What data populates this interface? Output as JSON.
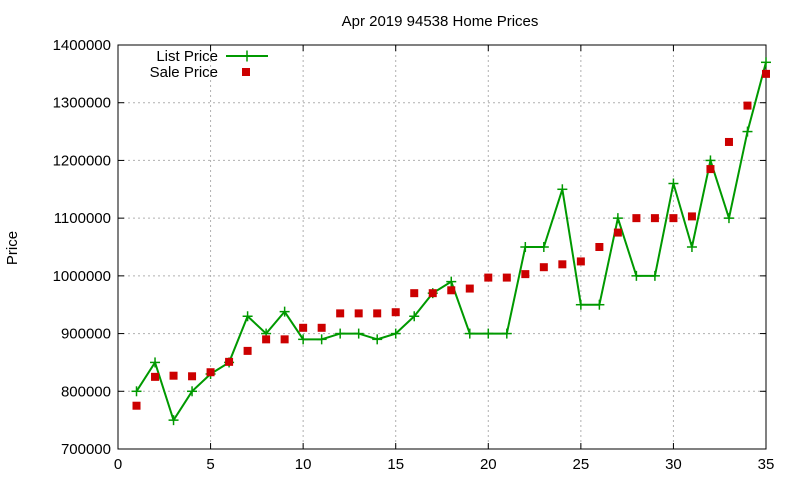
{
  "chart_data": {
    "type": "line",
    "title": "Apr 2019 94538 Home Prices",
    "xlabel": "",
    "ylabel": "Price",
    "xlim": [
      0,
      35
    ],
    "ylim": [
      700000,
      1400000
    ],
    "x_ticks": [
      0,
      5,
      10,
      15,
      20,
      25,
      30,
      35
    ],
    "y_ticks": [
      700000,
      800000,
      900000,
      1000000,
      1100000,
      1200000,
      1300000,
      1400000
    ],
    "x_tick_labels": [
      "0",
      "5",
      "10",
      "15",
      "20",
      "25",
      "30",
      "35"
    ],
    "y_tick_labels": [
      "700000",
      "800000",
      "900000",
      "1000000",
      "1100000",
      "1200000",
      "1300000",
      "1400000"
    ],
    "grid": true,
    "legend_position": "top-left",
    "series": [
      {
        "name": "List Price",
        "style": "line-plus",
        "color": "#009900",
        "x": [
          1,
          2,
          3,
          4,
          5,
          6,
          7,
          8,
          9,
          10,
          11,
          12,
          13,
          14,
          15,
          16,
          17,
          18,
          19,
          20,
          21,
          22,
          23,
          24,
          25,
          26,
          27,
          28,
          29,
          30,
          31,
          32,
          33,
          34,
          35
        ],
        "values": [
          800000,
          850000,
          750000,
          800000,
          830000,
          850000,
          930000,
          900000,
          938000,
          890000,
          890000,
          900000,
          900000,
          890000,
          900000,
          930000,
          970000,
          990000,
          900000,
          900000,
          900000,
          1050000,
          1050000,
          1150000,
          950000,
          950000,
          1100000,
          1000000,
          1000000,
          1160000,
          1050000,
          1200000,
          1100000,
          1250000,
          1370000
        ]
      },
      {
        "name": "Sale Price",
        "style": "square-points",
        "color": "#cc0000",
        "x": [
          1,
          2,
          3,
          4,
          5,
          6,
          7,
          8,
          9,
          10,
          11,
          12,
          13,
          14,
          15,
          16,
          17,
          18,
          19,
          20,
          21,
          22,
          23,
          24,
          25,
          26,
          27,
          28,
          29,
          30,
          31,
          32,
          33,
          34,
          35
        ],
        "values": [
          775000,
          825000,
          827000,
          826000,
          833000,
          851000,
          870000,
          890000,
          890000,
          910000,
          910000,
          935000,
          935000,
          935000,
          937000,
          970000,
          970000,
          975000,
          978000,
          997000,
          997000,
          1003000,
          1015000,
          1020000,
          1025000,
          1050000,
          1075000,
          1100000,
          1100000,
          1100000,
          1103000,
          1185000,
          1232000,
          1295000,
          1350000
        ]
      }
    ]
  }
}
